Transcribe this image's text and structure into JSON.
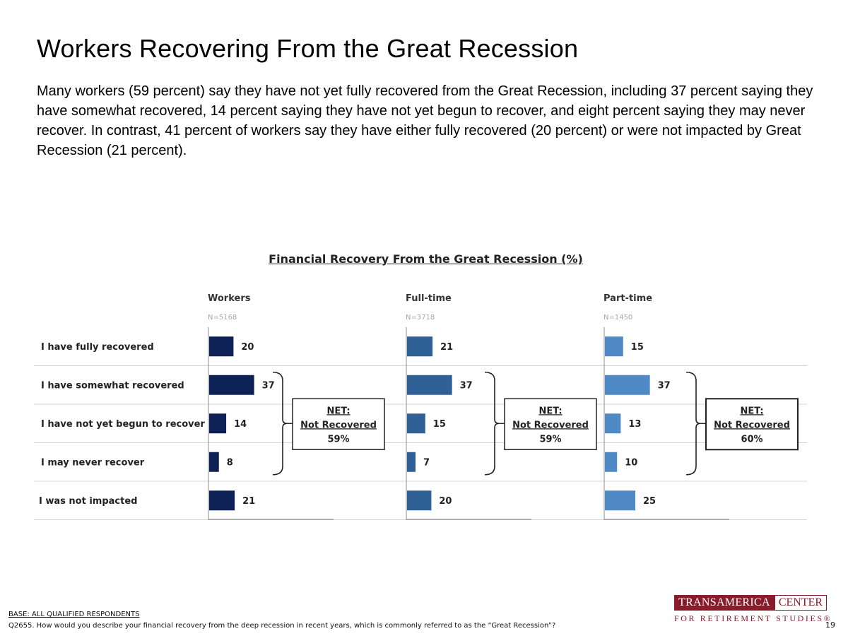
{
  "page": {
    "title": "Workers Recovering From the Great Recession",
    "lead": "Many workers (59 percent) say they have not yet fully recovered from the Great Recession, including 37 percent saying they have somewhat recovered, 14 percent saying they have not yet begun to recover, and eight percent saying they may never recover. In contrast, 41 percent of workers say they have either fully recovered (20 percent) or were not impacted by Great Recession (21 percent).",
    "page_number": "19"
  },
  "chart_data": {
    "type": "bar",
    "orientation": "horizontal",
    "title": "Financial Recovery From the Great Recession (%)",
    "categories": [
      "I have fully recovered",
      "I have somewhat recovered",
      "I have not yet begun to recover",
      "I may never recover",
      "I was not impacted"
    ],
    "series": [
      {
        "name": "Workers",
        "n": "N=5168",
        "values": [
          20,
          37,
          14,
          8,
          21
        ],
        "color": "#0e2157",
        "net": {
          "label": "NET:",
          "sub": "Not Recovered",
          "value": "59%"
        }
      },
      {
        "name": "Full-time",
        "n": "N=3718",
        "values": [
          21,
          37,
          15,
          7,
          20
        ],
        "color": "#2f6096",
        "net": {
          "label": "NET:",
          "sub": "Not Recovered",
          "value": "59%"
        }
      },
      {
        "name": "Part-time",
        "n": "N=1450",
        "values": [
          15,
          37,
          13,
          10,
          25
        ],
        "color": "#4f8ac6",
        "net": {
          "label": "NET:",
          "sub": "Not Recovered",
          "value": "60%"
        }
      }
    ],
    "xlim": [
      0,
      100
    ],
    "net_bracket_rows": [
      1,
      2,
      3
    ]
  },
  "footer": {
    "base": "BASE: ALL QUALIFIED RESPONDENTS",
    "question": "Q2655. How would you describe your financial recovery from the deep recession in recent years, which is commonly referred to as the “Great Recession”?"
  },
  "logo": {
    "part1": "TRANSAMERICA",
    "part2": "CENTER",
    "sub": "FOR RETIREMENT STUDIES®"
  }
}
